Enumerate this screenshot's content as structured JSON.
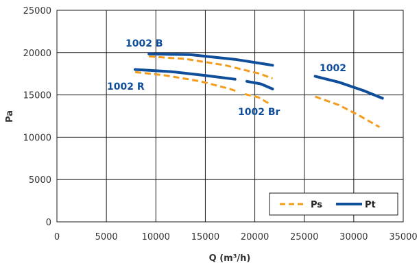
{
  "chart_data": {
    "type": "line",
    "title": "",
    "xlabel": "Q (m³/h)",
    "ylabel": "Pa",
    "xlim": [
      0,
      35000
    ],
    "ylim": [
      0,
      25000
    ],
    "x_ticks": [
      0,
      5000,
      10000,
      15000,
      20000,
      25000,
      30000,
      35000
    ],
    "y_ticks": [
      0,
      5000,
      10000,
      15000,
      20000,
      25000
    ],
    "grid": true,
    "legend_position": "bottom-right",
    "legend": [
      {
        "name": "Ps",
        "style": "dashed",
        "color": "#F39C1E"
      },
      {
        "name": "Pt",
        "style": "solid",
        "color": "#0E4E9B"
      }
    ],
    "colors": {
      "Ps": "#F39C1E",
      "Pt": "#0E4E9B"
    },
    "series": [
      {
        "model": "1002 B",
        "kind": "Pt",
        "points": [
          [
            9300,
            19850
          ],
          [
            13500,
            19750
          ],
          [
            18000,
            19200
          ],
          [
            21800,
            18500
          ]
        ]
      },
      {
        "model": "1002 B",
        "kind": "Ps",
        "points": [
          [
            9300,
            19550
          ],
          [
            13000,
            19250
          ],
          [
            17000,
            18500
          ],
          [
            20500,
            17500
          ],
          [
            21800,
            16950
          ]
        ]
      },
      {
        "model": "1002 R",
        "kind": "Pt",
        "points": [
          [
            7900,
            18000
          ],
          [
            11500,
            17750
          ],
          [
            15000,
            17300
          ],
          [
            18000,
            16850
          ]
        ]
      },
      {
        "model": "1002 R",
        "kind": "Ps",
        "points": [
          [
            7900,
            17700
          ],
          [
            11000,
            17300
          ],
          [
            14500,
            16600
          ],
          [
            17500,
            15700
          ],
          [
            18200,
            15400
          ]
        ]
      },
      {
        "model": "1002 Br",
        "kind": "Pt",
        "points": [
          [
            19200,
            16600
          ],
          [
            20600,
            16300
          ],
          [
            21800,
            15700
          ]
        ]
      },
      {
        "model": "1002 Br",
        "kind": "Ps",
        "points": [
          [
            19000,
            15100
          ],
          [
            20400,
            14700
          ],
          [
            21400,
            14000
          ]
        ]
      },
      {
        "model": "1002",
        "kind": "Pt",
        "points": [
          [
            26100,
            17200
          ],
          [
            28500,
            16500
          ],
          [
            31000,
            15500
          ],
          [
            32900,
            14600
          ]
        ]
      },
      {
        "model": "1002",
        "kind": "Ps",
        "points": [
          [
            26100,
            14800
          ],
          [
            28500,
            13800
          ],
          [
            30500,
            12600
          ],
          [
            32600,
            11200
          ]
        ]
      }
    ],
    "labels": [
      {
        "text": "1002 B",
        "color": "#0E4E9B"
      },
      {
        "text": "1002 R",
        "color": "#0E4E9B"
      },
      {
        "text": "1002 Br",
        "color": "#0E4E9B"
      },
      {
        "text": "1002",
        "color": "#0E4E9B"
      }
    ]
  }
}
